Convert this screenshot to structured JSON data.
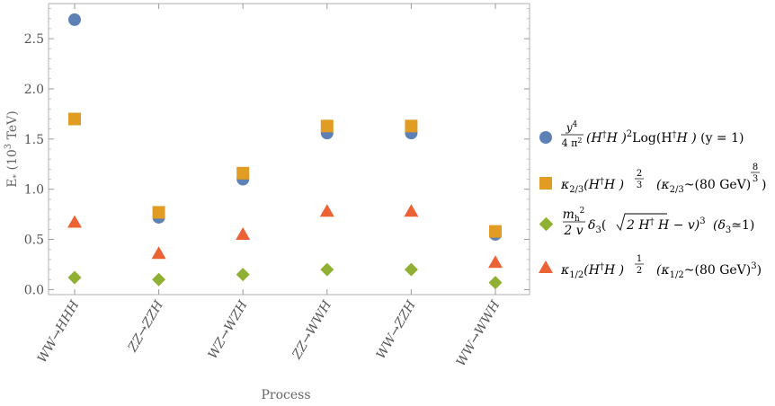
{
  "chart_data": {
    "type": "scatter",
    "title": "",
    "xlabel": "Process",
    "ylabel": "E* (10^3 TeV)",
    "ylabel_parts": {
      "base": "E",
      "sub": "*",
      "open": " (10",
      "sup": "3",
      "close": " TeV)"
    },
    "categories": [
      "WW→HHH",
      "ZZ→ZZH",
      "WZ→WZH",
      "ZZ→WWH",
      "WW→ZZH",
      "WW→WWH"
    ],
    "ylim": [
      -0.05,
      2.85
    ],
    "yticks": [
      "0.0",
      "0.5",
      "1.0",
      "1.5",
      "2.0",
      "2.5"
    ],
    "series": [
      {
        "name": "y^4/(4π^2) (H†H)^2 Log(H†H) (y=1)",
        "marker": "circle",
        "color": "#5e81b5",
        "values": [
          2.69,
          0.72,
          1.1,
          1.56,
          1.56,
          0.55
        ]
      },
      {
        "name": "κ2/3 (H†H)^(2/3) (κ2/3 ~ (80 GeV)^(8/3))",
        "marker": "square",
        "color": "#e19c24",
        "values": [
          1.7,
          0.77,
          1.16,
          1.63,
          1.63,
          0.58
        ]
      },
      {
        "name": "mh^2/(2v) δ3 (√(2H†H) − v)^3 (δ3≃1)",
        "marker": "diamond",
        "color": "#8fb032",
        "values": [
          0.12,
          0.1,
          0.15,
          0.2,
          0.2,
          0.07
        ]
      },
      {
        "name": "κ1/2 (H†H)^(1/2) (κ1/2 ~ (80 GeV)^3)",
        "marker": "triangle",
        "color": "#eb6235",
        "values": [
          0.67,
          0.36,
          0.55,
          0.78,
          0.78,
          0.27
        ]
      }
    ]
  },
  "legend": {
    "item1": {
      "frac_num": "y",
      "frac_num_sup": "4",
      "frac_den": "4 π",
      "frac_den_sup": "2",
      "body": " (H",
      "dagger": "†",
      "body2": "H )",
      "sq": "2",
      "log": "Log(H",
      "dagger2": "†",
      "log_end": "H )",
      "cond": "  (y = 1)"
    },
    "item2": {
      "kappa": "κ",
      "sub": "2/3",
      "body": "(H",
      "dagger": "†",
      "body2": "H )",
      "exp_num": "2",
      "exp_den": "3",
      "cond_open": "(κ",
      "cond_sub": "2/3",
      "cond_mid": "~(80 GeV)",
      "cond_exp_num": "8",
      "cond_exp_den": "3",
      "cond_close": ")"
    },
    "item3": {
      "frac_num": "m",
      "frac_num_sub": "h",
      "frac_num_sup": "2",
      "frac_den": "2 v",
      "delta": "δ",
      "delta_sub": "3",
      "body": "(",
      "sqrt_body": "2 H",
      "dagger": "†",
      "sqrt_body2": " H",
      "minus": " − v)",
      "cube": "3",
      "cond": "(δ",
      "cond_sub": "3",
      "cond_end": "≃1)"
    },
    "item4": {
      "kappa": "κ",
      "sub": "1/2",
      "body": "(H",
      "dagger": "†",
      "body2": "H )",
      "exp_num": "1",
      "exp_den": "2",
      "cond_open": "(κ",
      "cond_sub": "1/2",
      "cond_mid": "~(80 GeV)",
      "cond_exp": "3",
      "cond_close": ")"
    }
  }
}
